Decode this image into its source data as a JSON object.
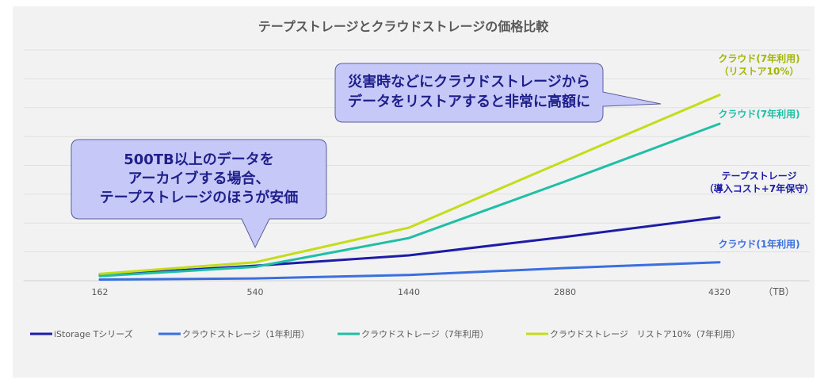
{
  "chart_data": {
    "type": "line",
    "title": "テープストレージとクラウドストレージの価格比較",
    "categories": [
      "162",
      "540",
      "1440",
      "2880",
      "4320"
    ],
    "unit_label": "（TB）",
    "ylim": [
      0,
      100
    ],
    "grid": true,
    "legend_position": "bottom",
    "series": [
      {
        "name": "iStorage Tシリーズ",
        "color": "#1c1ca8",
        "values": [
          2.5,
          6.5,
          11,
          19,
          27.5
        ],
        "annotation": [
          "テープストレージ",
          "（導入コスト+7年保守）"
        ]
      },
      {
        "name": "クラウドストレージ（1年利用）",
        "color": "#3a6fe0",
        "values": [
          0.5,
          1,
          2.5,
          5.5,
          8
        ],
        "annotation": [
          "クラウド(1年利用)"
        ]
      },
      {
        "name": "クラウドストレージ（7年利用）",
        "color": "#1fbfa6",
        "values": [
          2,
          6,
          18.5,
          43,
          68
        ],
        "annotation": [
          "クラウド(7年利用)"
        ]
      },
      {
        "name": "クラウドストレージ　リストア10%（7年利用）",
        "color": "#c5dc18",
        "values": [
          3,
          8,
          23,
          52,
          80.5
        ],
        "annotation": [
          "クラウド(7年利用)",
          "（リストア10%）"
        ]
      }
    ],
    "callouts": [
      {
        "lines": [
          "500TB以上のデータを",
          "アーカイブする場合、",
          "テープストレージのほうが安価"
        ]
      },
      {
        "lines": [
          "災害時などにクラウドストレージから",
          "データをリストアすると非常に高額に"
        ]
      }
    ]
  }
}
